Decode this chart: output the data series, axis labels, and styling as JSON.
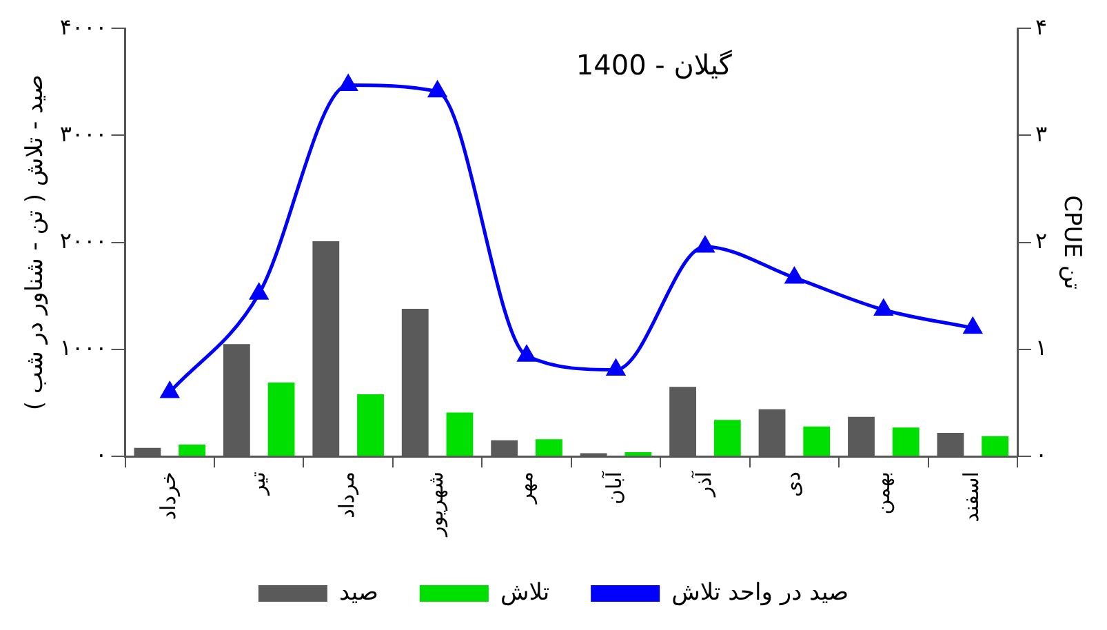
{
  "chart_data": {
    "type": "bar",
    "title": "گیلان - 1400",
    "ylabel": "صید - تلاش ( تن - شناور در شب )",
    "y2label": "CPUE تن",
    "categories": [
      "خرداد",
      "تیر",
      "مرداد",
      "شهریور",
      "مهر",
      "آبان",
      "آذر",
      "دی",
      "بهمن",
      "اسفند"
    ],
    "series": [
      {
        "name": "صید",
        "color": "#5a5a5a",
        "values": [
          80,
          1050,
          2010,
          1380,
          150,
          30,
          650,
          440,
          370,
          220
        ]
      },
      {
        "name": "تلاش",
        "color": "#00e000",
        "values": [
          110,
          690,
          580,
          410,
          160,
          40,
          340,
          280,
          270,
          190
        ]
      },
      {
        "name": "صید در واحد تلاش",
        "type": "line",
        "axis": "y2",
        "color": "#0000ff",
        "marker": "triangle",
        "values": [
          0.6,
          1.52,
          3.47,
          3.41,
          0.94,
          0.81,
          1.96,
          1.67,
          1.37,
          1.2
        ]
      }
    ],
    "ylim": [
      0,
      4000
    ],
    "yticks": [
      {
        "value": 0,
        "label": "۰"
      },
      {
        "value": 1000,
        "label": "۱۰۰۰"
      },
      {
        "value": 2000,
        "label": "۲۰۰۰"
      },
      {
        "value": 3000,
        "label": "۳۰۰۰"
      },
      {
        "value": 4000,
        "label": "۴۰۰۰"
      }
    ],
    "y2lim": [
      0,
      4
    ],
    "y2ticks": [
      {
        "value": 0,
        "label": "۰"
      },
      {
        "value": 1,
        "label": "۱"
      },
      {
        "value": 2,
        "label": "۲"
      },
      {
        "value": 3,
        "label": "۳"
      },
      {
        "value": 4,
        "label": "۴"
      }
    ],
    "grid": false,
    "legend": "bottom"
  }
}
